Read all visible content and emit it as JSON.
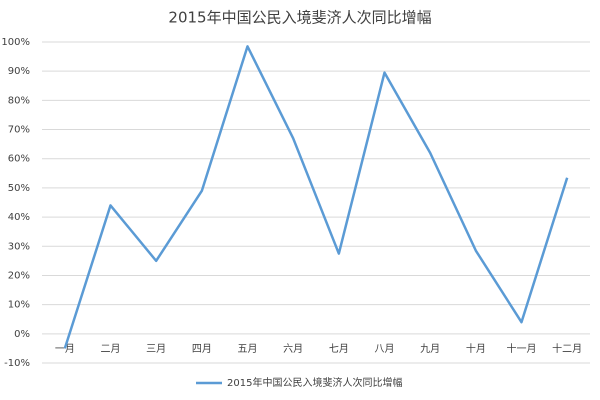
{
  "chart_data": {
    "type": "line",
    "title": "2015年中国公民入境斐济人次同比增幅",
    "categories": [
      "一月",
      "二月",
      "三月",
      "四月",
      "五月",
      "六月",
      "七月",
      "八月",
      "九月",
      "十月",
      "十一月",
      "十二月"
    ],
    "series": [
      {
        "name": "2015年中国公民入境斐济人次同比增幅",
        "color": "#5b9bd5",
        "values": [
          -5,
          44,
          25,
          49,
          98.5,
          67,
          27.5,
          89.5,
          62,
          28.5,
          4,
          53.5
        ]
      }
    ],
    "ylim": [
      -10,
      100
    ],
    "yticks": [
      {
        "value": -10,
        "label": "-10%"
      },
      {
        "value": 0,
        "label": "0%"
      },
      {
        "value": 10,
        "label": "10%"
      },
      {
        "value": 20,
        "label": "20%"
      },
      {
        "value": 30,
        "label": "30%"
      },
      {
        "value": 40,
        "label": "40%"
      },
      {
        "value": 50,
        "label": "50%"
      },
      {
        "value": 60,
        "label": "60%"
      },
      {
        "value": 70,
        "label": "70%"
      },
      {
        "value": 80,
        "label": "80%"
      },
      {
        "value": 90,
        "label": "90%"
      },
      {
        "value": 100,
        "label": "100%"
      }
    ],
    "grid": true,
    "legend": "bottom"
  }
}
